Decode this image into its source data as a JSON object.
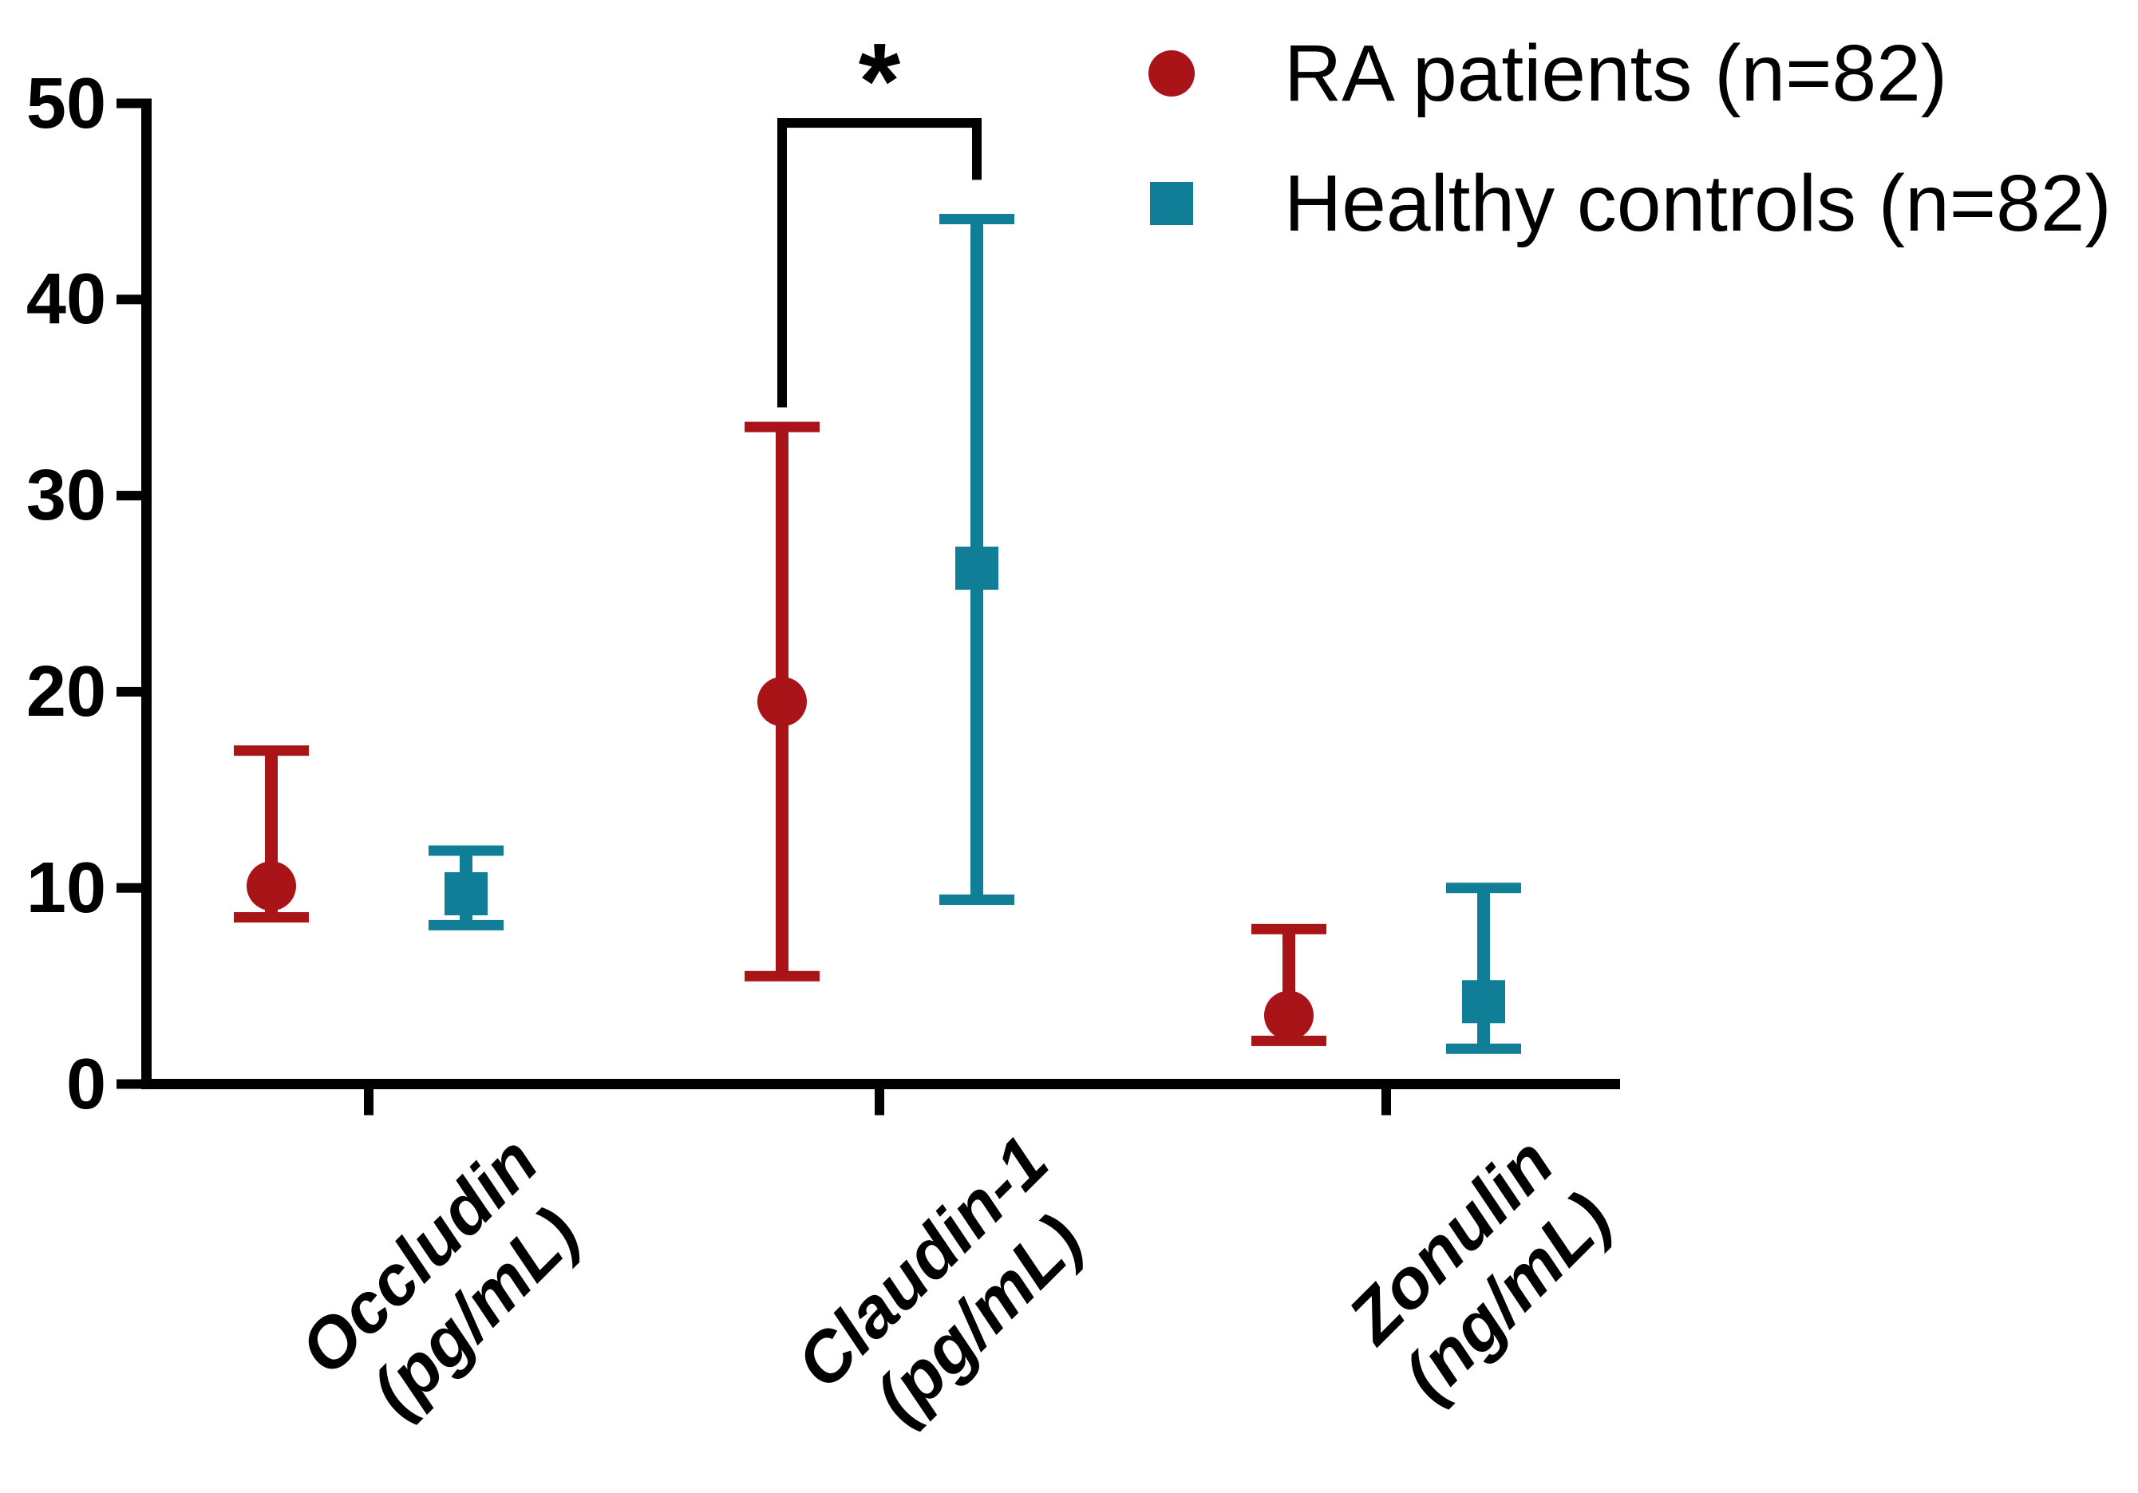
{
  "legend": {
    "items": [
      {
        "label": "RA patients (n=82)",
        "marker": "circle-icon",
        "color": "#A91418"
      },
      {
        "label": "Healthy controls (n=82)",
        "marker": "square-icon",
        "color": "#0F7E96"
      }
    ]
  },
  "significance": {
    "label": "*",
    "category": "Claudin-1 (pg/mL)",
    "compares": [
      "RA patients (n=82)",
      "Healthy controls (n=82)"
    ]
  },
  "chart_data": {
    "type": "scatter",
    "subtype": "median-with-error-bars",
    "title": "",
    "xlabel": "",
    "ylabel": "",
    "ylim": [
      0,
      50
    ],
    "yticks": [
      0,
      10,
      20,
      30,
      40,
      50
    ],
    "grid": false,
    "legend_position": "top-right",
    "categories": [
      {
        "name": "Occludin",
        "unit": "(pg/mL)"
      },
      {
        "name": "Claudin-1",
        "unit": "(pg/mL)"
      },
      {
        "name": "Zonulin",
        "unit": "(ng/mL)"
      }
    ],
    "series": [
      {
        "name": "RA patients (n=82)",
        "marker": "circle",
        "color": "#A91418",
        "values": [
          {
            "median": 10.1,
            "lower": 8.5,
            "upper": 17.0
          },
          {
            "median": 19.5,
            "lower": 5.5,
            "upper": 33.5
          },
          {
            "median": 3.5,
            "lower": 2.2,
            "upper": 7.9
          }
        ]
      },
      {
        "name": "Healthy controls (n=82)",
        "marker": "square",
        "color": "#0F7E96",
        "values": [
          {
            "median": 9.7,
            "lower": 8.1,
            "upper": 11.9
          },
          {
            "median": 26.3,
            "lower": 9.4,
            "upper": 44.1
          },
          {
            "median": 4.2,
            "lower": 1.8,
            "upper": 10.0
          }
        ]
      }
    ],
    "annotation": {
      "label": "*",
      "category_index": 1,
      "series_pair": [
        0,
        1
      ],
      "bar_value": 49.0,
      "arm_end_values": [
        34.5,
        46.1
      ]
    }
  }
}
